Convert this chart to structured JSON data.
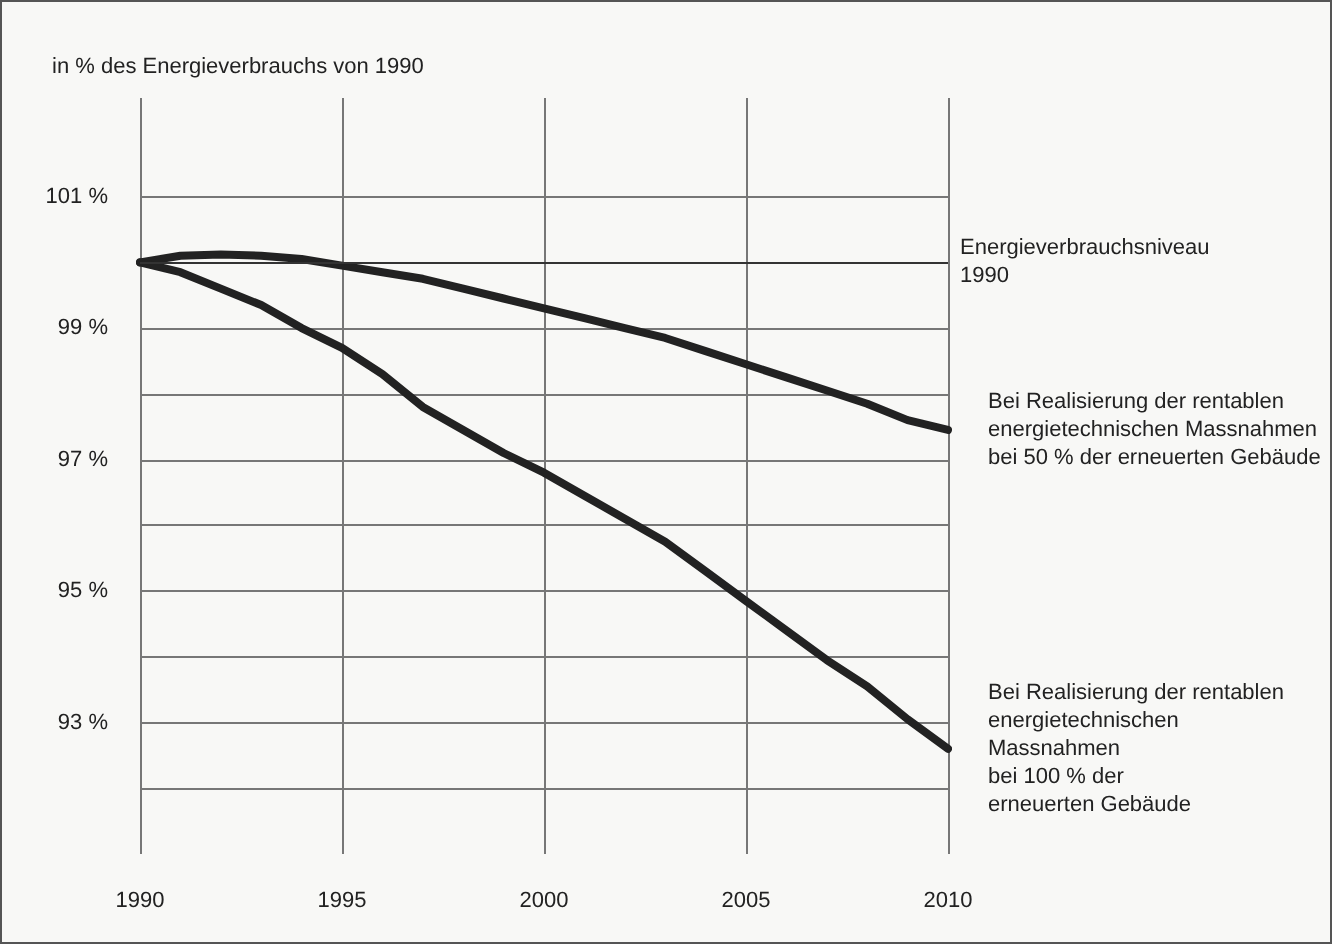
{
  "chart_data": {
    "type": "line",
    "ylabel": "in % des Energieverbrauchs von 1990",
    "x": [
      1990,
      1991,
      1992,
      1993,
      1994,
      1995,
      1996,
      1997,
      1998,
      1999,
      2000,
      2001,
      2002,
      2003,
      2004,
      2005,
      2006,
      2007,
      2008,
      2009,
      2010
    ],
    "series": [
      {
        "name": "Bei Realisierung der rentablen\nenergietechnischen Massnahmen\nbei 50 % der erneuerten Gebäude",
        "color": "#222222",
        "values": [
          100,
          100.1,
          100.12,
          100.1,
          100.05,
          99.95,
          99.85,
          99.75,
          99.6,
          99.45,
          99.3,
          99.15,
          99.0,
          98.85,
          98.65,
          98.45,
          98.25,
          98.05,
          97.85,
          97.6,
          97.45
        ]
      },
      {
        "name": "Bei Realisierung der rentablen\nenergietechnischen\nMassnahmen\nbei 100 % der\nerneuerten Gebäude",
        "color": "#222222",
        "values": [
          100,
          99.85,
          99.6,
          99.35,
          99.0,
          98.7,
          98.3,
          97.8,
          97.45,
          97.1,
          96.8,
          96.45,
          96.1,
          95.75,
          95.3,
          94.85,
          94.4,
          93.95,
          93.55,
          93.05,
          92.6
        ]
      }
    ],
    "xlim": [
      1990,
      2010
    ],
    "xticks": [
      1990,
      1995,
      2000,
      2005,
      2010
    ],
    "ylim": [
      91,
      102.5
    ],
    "yticks": [
      {
        "value": 92,
        "label": null
      },
      {
        "value": 93,
        "label": "93 %"
      },
      {
        "value": 94,
        "label": null
      },
      {
        "value": 95,
        "label": "95 %"
      },
      {
        "value": 96,
        "label": null
      },
      {
        "value": 97,
        "label": "97 %"
      },
      {
        "value": 98,
        "label": null
      },
      {
        "value": 99,
        "label": "99 %"
      },
      {
        "value": 100,
        "label": null
      },
      {
        "value": 101,
        "label": "101 %"
      }
    ],
    "ref_lines": [
      {
        "axis": "y",
        "value": 100,
        "label": "Energieverbrauchsniveau\n1990",
        "color": "#333333"
      }
    ],
    "grid": true,
    "legend": false,
    "marker": "none",
    "line_style": "solid"
  }
}
